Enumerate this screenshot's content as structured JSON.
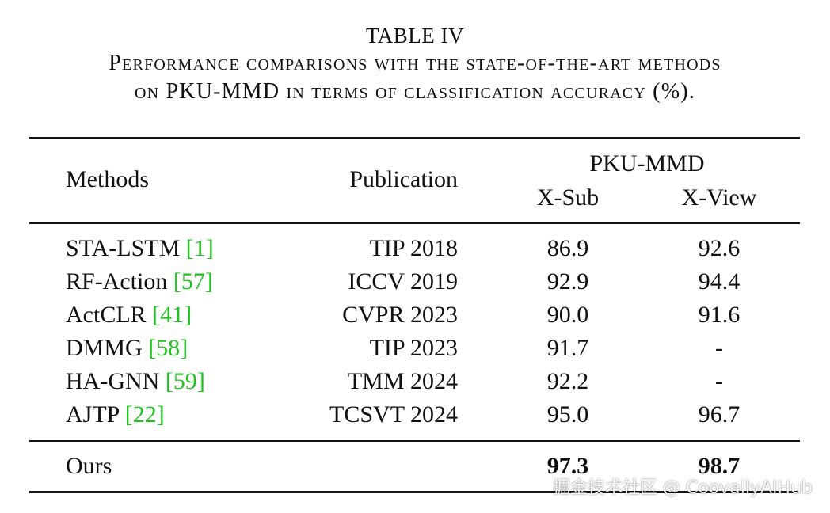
{
  "title": "TABLE IV",
  "caption": [
    "Performance comparisons with the state-of-the-art methods",
    "on PKU-MMD in terms of classification accuracy (%)."
  ],
  "table": {
    "header": {
      "methods": "Methods",
      "publication": "Publication",
      "dataset": "PKU-MMD",
      "columns": [
        "X-Sub",
        "X-View"
      ]
    },
    "rows": [
      {
        "method": "STA-LSTM",
        "ref": "[1]",
        "publication": "TIP 2018",
        "x_sub": "86.9",
        "x_view": "92.6"
      },
      {
        "method": "RF-Action",
        "ref": "[57]",
        "publication": "ICCV 2019",
        "x_sub": "92.9",
        "x_view": "94.4"
      },
      {
        "method": "ActCLR",
        "ref": "[41]",
        "publication": "CVPR 2023",
        "x_sub": "90.0",
        "x_view": "91.6"
      },
      {
        "method": "DMMG",
        "ref": "[58]",
        "publication": "TIP 2023",
        "x_sub": "91.7",
        "x_view": "-"
      },
      {
        "method": "HA-GNN",
        "ref": "[59]",
        "publication": "TMM 2024",
        "x_sub": "92.2",
        "x_view": "-"
      },
      {
        "method": "AJTP",
        "ref": "[22]",
        "publication": "TCSVT 2024",
        "x_sub": "95.0",
        "x_view": "96.7"
      }
    ],
    "ours": {
      "method": "Ours",
      "x_sub": "97.3",
      "x_view": "98.7"
    }
  },
  "watermark": "掘金技术社区 @ CoovallyAIHub"
}
